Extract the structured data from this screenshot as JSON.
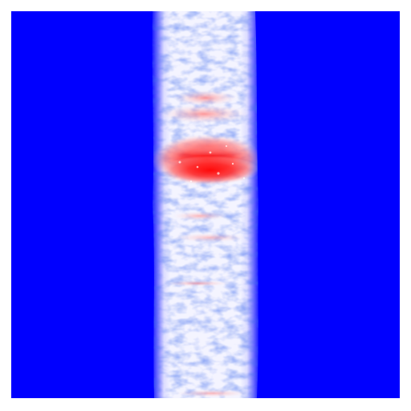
{
  "image": {
    "kind": "scientific-field-visualization",
    "description_free": true,
    "colors": {
      "background_frame": "#ffffff",
      "field_low": "#0000ff",
      "field_mid": "#ffffff",
      "field_high": "#ff0000"
    },
    "features": [
      "solid-blue-left-region",
      "solid-blue-right-region",
      "turbulent-central-band",
      "red-hot-spot-upper-center"
    ]
  }
}
